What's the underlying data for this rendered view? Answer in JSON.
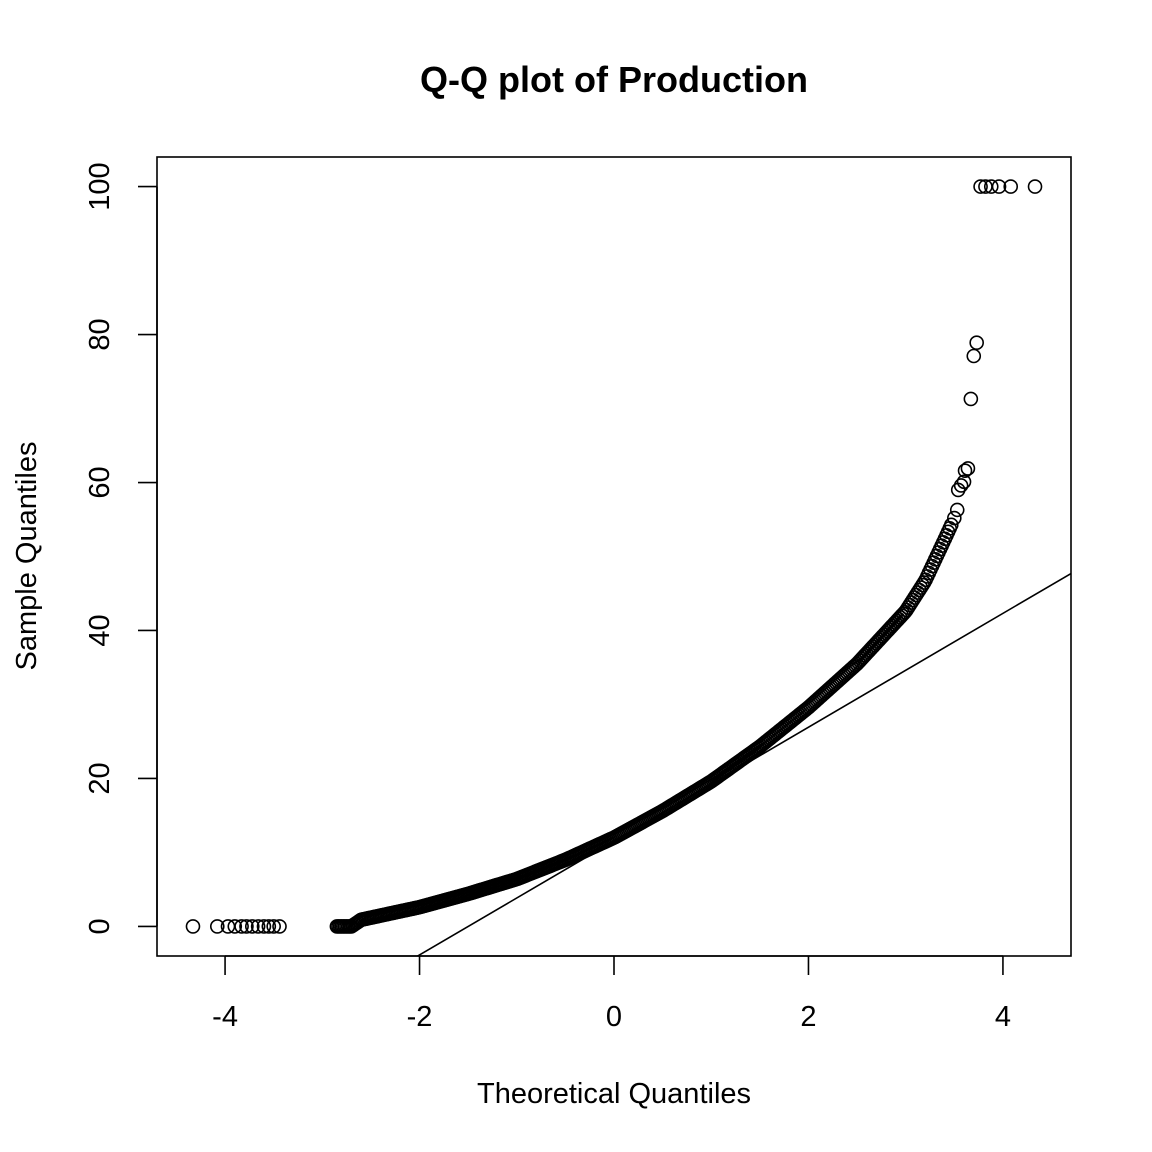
{
  "chart_data": {
    "type": "scatter",
    "title": "Q-Q plot of Production",
    "xlabel": "Theoretical Quantiles",
    "ylabel": "Sample Quantiles",
    "xlim": [
      -4.7,
      4.7
    ],
    "ylim": [
      -4,
      104
    ],
    "x_ticks": [
      -4,
      -2,
      0,
      2,
      4
    ],
    "y_ticks": [
      0,
      20,
      40,
      60,
      80,
      100
    ],
    "x_tick_labels": [
      "-4",
      "-2",
      "0",
      "2",
      "4"
    ],
    "y_tick_labels": [
      "0",
      "20",
      "40",
      "60",
      "80",
      "100"
    ],
    "grid": false,
    "reference_line": {
      "points": [
        [
          -2.5,
          -7.7
        ],
        [
          4.7,
          47.7
        ]
      ]
    },
    "curve_knots": [
      [
        -2.85,
        0
      ],
      [
        -2.7,
        0
      ],
      [
        -2.6,
        0.9
      ],
      [
        -2.0,
        2.6
      ],
      [
        -1.5,
        4.4
      ],
      [
        -1.0,
        6.4
      ],
      [
        -0.5,
        9.0
      ],
      [
        0,
        12.0
      ],
      [
        0.5,
        15.6
      ],
      [
        1.0,
        19.6
      ],
      [
        1.5,
        24.3
      ],
      [
        2.0,
        29.6
      ],
      [
        2.5,
        35.5
      ],
      [
        3.0,
        42.6
      ],
      [
        3.2,
        46.7
      ],
      [
        3.3,
        49.5
      ],
      [
        3.4,
        52.3
      ],
      [
        3.48,
        54.6
      ]
    ],
    "outliers": [
      {
        "x": -4.33,
        "y": 0
      },
      {
        "x": -4.08,
        "y": 0
      },
      {
        "x": -3.97,
        "y": 0
      },
      {
        "x": -3.9,
        "y": 0
      },
      {
        "x": -3.83,
        "y": 0
      },
      {
        "x": -3.78,
        "y": 0
      },
      {
        "x": -3.72,
        "y": 0
      },
      {
        "x": -3.66,
        "y": 0
      },
      {
        "x": -3.6,
        "y": 0
      },
      {
        "x": -3.55,
        "y": 0
      },
      {
        "x": -3.5,
        "y": 0
      },
      {
        "x": -3.44,
        "y": 0
      },
      {
        "x": 3.5,
        "y": 55.2
      },
      {
        "x": 3.53,
        "y": 56.3
      },
      {
        "x": 3.54,
        "y": 59.0
      },
      {
        "x": 3.57,
        "y": 59.6
      },
      {
        "x": 3.6,
        "y": 60.1
      },
      {
        "x": 3.61,
        "y": 61.6
      },
      {
        "x": 3.64,
        "y": 61.9
      },
      {
        "x": 3.67,
        "y": 71.3
      },
      {
        "x": 3.7,
        "y": 77.1
      },
      {
        "x": 3.73,
        "y": 78.9
      },
      {
        "x": 3.77,
        "y": 100
      },
      {
        "x": 3.82,
        "y": 100
      },
      {
        "x": 3.88,
        "y": 100
      },
      {
        "x": 3.96,
        "y": 100
      },
      {
        "x": 4.08,
        "y": 100
      },
      {
        "x": 4.33,
        "y": 100
      }
    ]
  }
}
